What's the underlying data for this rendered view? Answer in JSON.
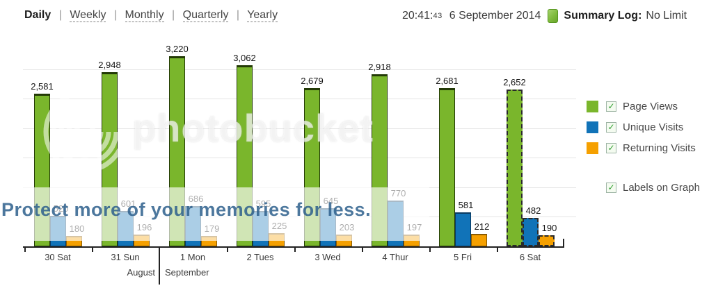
{
  "header": {
    "nav": [
      {
        "label": "Daily",
        "active": true
      },
      {
        "label": "Weekly",
        "active": false
      },
      {
        "label": "Monthly",
        "active": false
      },
      {
        "label": "Quarterly",
        "active": false
      },
      {
        "label": "Yearly",
        "active": false
      }
    ],
    "separator": "|",
    "time": "20:41:",
    "seconds": "43",
    "date": "6 September 2014",
    "log_icon": "green-log-icon",
    "summary_label": "Summary Log:",
    "summary_value": "No Limit"
  },
  "chart_data": {
    "type": "bar",
    "categories": [
      "30 Sat",
      "31 Sun",
      "1 Mon",
      "2 Tues",
      "3 Wed",
      "4 Thur",
      "5 Fri",
      "6 Sat"
    ],
    "month_markers": [
      {
        "label": "August",
        "under_category": "31 Sun"
      },
      {
        "label": "September",
        "under_category": "1 Mon"
      }
    ],
    "series": [
      {
        "name": "Page Views",
        "color": "#7ab62c",
        "border": "#233a06",
        "values": [
          2581,
          2948,
          3220,
          3062,
          2679,
          2918,
          2681,
          2652
        ]
      },
      {
        "name": "Unique Visits",
        "color": "#1173b8",
        "border": "#0a3a60",
        "values": [
          520,
          601,
          686,
          595,
          645,
          770,
          581,
          482
        ]
      },
      {
        "name": "Returning Visits",
        "color": "#f5a000",
        "border": "#8a5a00",
        "values": [
          180,
          196,
          179,
          225,
          203,
          197,
          212,
          190
        ]
      }
    ],
    "value_labels": true,
    "grid": true,
    "gridline_step": 500,
    "ylim": [
      0,
      3400
    ],
    "legend_position": "right",
    "last_group_dashed": true
  },
  "legend": {
    "check_glyph": "✓",
    "items": [
      {
        "label": "Page Views",
        "color": "#7ab62c",
        "checked": true
      },
      {
        "label": "Unique Visits",
        "color": "#1173b8",
        "checked": true
      },
      {
        "label": "Returning Visits",
        "color": "#f5a000",
        "checked": true
      }
    ],
    "labels_on_graph": {
      "label": "Labels on Graph",
      "checked": true
    }
  },
  "watermark": {
    "brand": "photobucket",
    "tagline": "Protect more of your memories for less."
  }
}
